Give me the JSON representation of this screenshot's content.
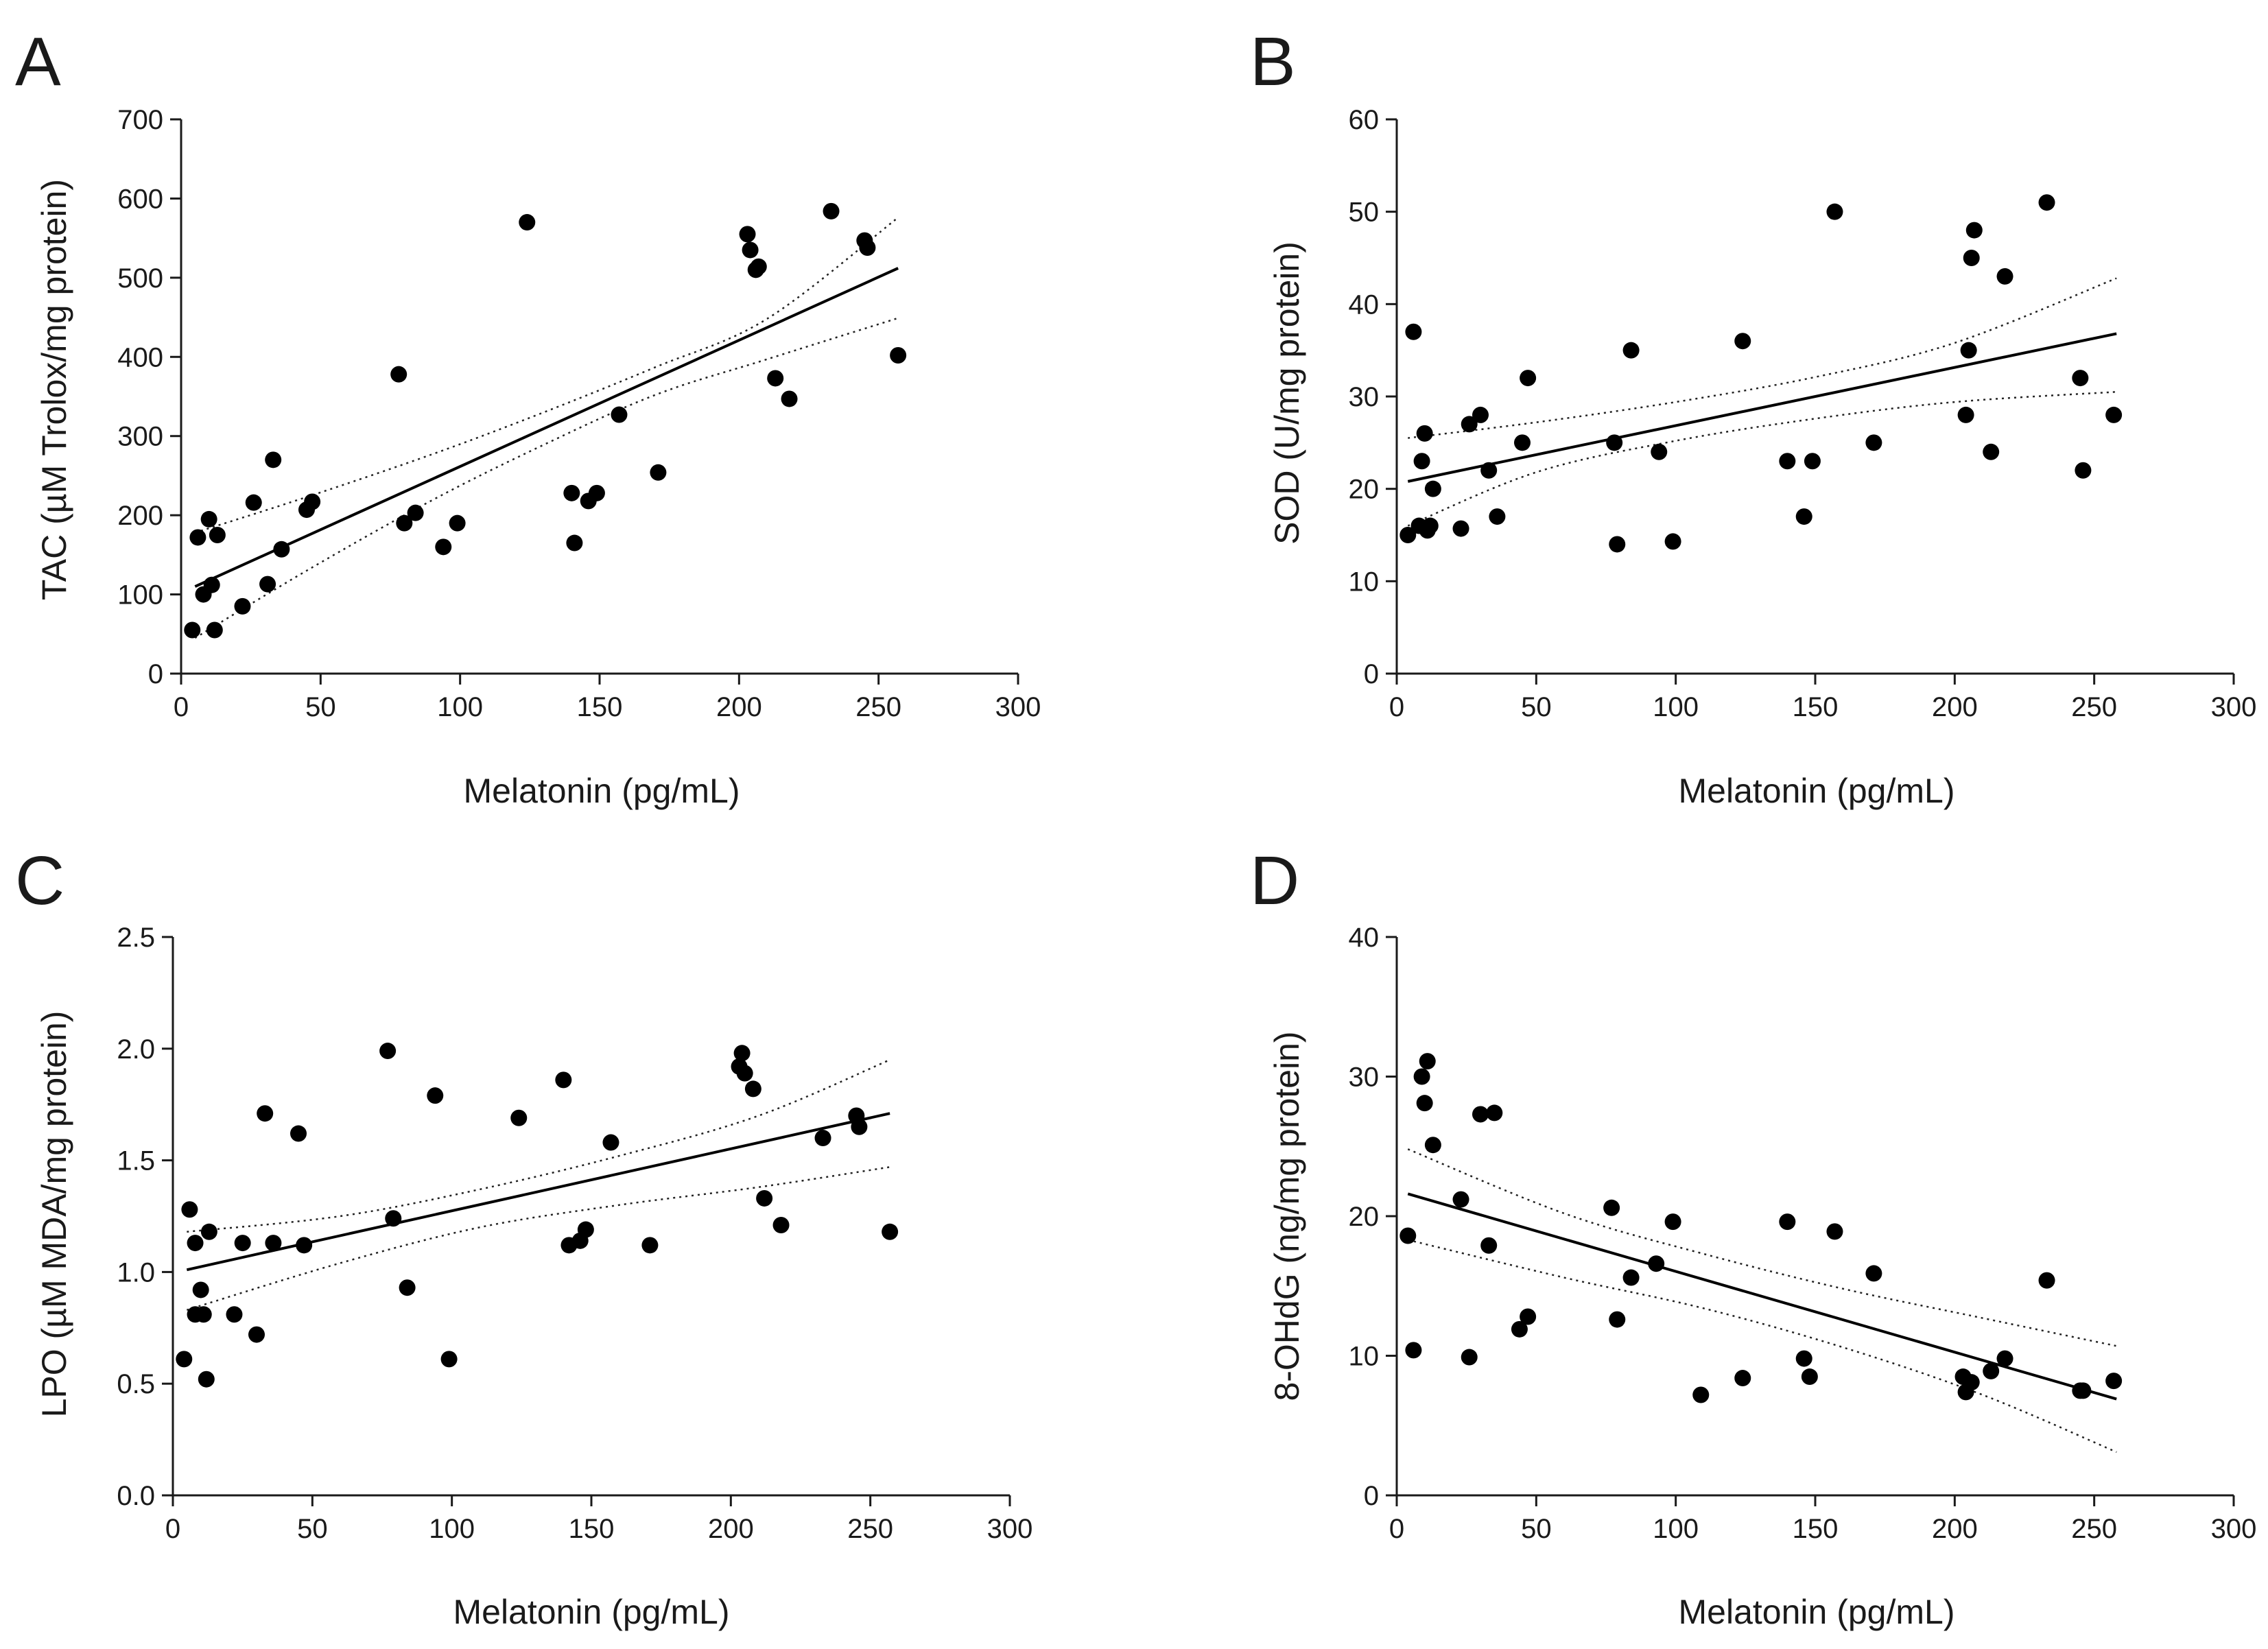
{
  "chart_data": [
    {
      "panel": "A",
      "type": "scatter",
      "xlabel": "Melatonin (pg/mL)",
      "ylabel": "TAC (µM Trolox/mg protein)",
      "xlim": [
        0,
        300
      ],
      "ylim": [
        0,
        700
      ],
      "xticks": [
        0,
        50,
        100,
        150,
        200,
        250,
        300
      ],
      "xtick_labels": [
        "0",
        "50",
        "100",
        "150",
        "200",
        "250",
        "300"
      ],
      "yticks": [
        0,
        100,
        200,
        300,
        400,
        500,
        600,
        700
      ],
      "ytick_labels": [
        "0",
        "100",
        "200",
        "300",
        "400",
        "500",
        "600",
        "700"
      ],
      "points": [
        [
          4,
          55
        ],
        [
          6,
          172
        ],
        [
          8,
          100
        ],
        [
          10,
          195
        ],
        [
          11,
          112
        ],
        [
          12,
          55
        ],
        [
          13,
          175
        ],
        [
          22,
          85
        ],
        [
          26,
          216
        ],
        [
          31,
          113
        ],
        [
          33,
          270
        ],
        [
          36,
          157
        ],
        [
          45,
          207
        ],
        [
          47,
          217
        ],
        [
          78,
          378
        ],
        [
          80,
          190
        ],
        [
          84,
          203
        ],
        [
          94,
          160
        ],
        [
          99,
          190
        ],
        [
          124,
          570
        ],
        [
          140,
          228
        ],
        [
          141,
          165
        ],
        [
          146,
          218
        ],
        [
          149,
          228
        ],
        [
          157,
          327
        ],
        [
          171,
          254
        ],
        [
          203,
          555
        ],
        [
          204,
          535
        ],
        [
          206,
          510
        ],
        [
          207,
          514
        ],
        [
          213,
          373
        ],
        [
          218,
          347
        ],
        [
          233,
          584
        ],
        [
          245,
          547
        ],
        [
          246,
          538
        ],
        [
          257,
          402
        ]
      ],
      "fit": {
        "x": [
          5,
          257
        ],
        "y": [
          110,
          512
        ]
      },
      "ci_upper": [
        [
          5,
          178
        ],
        [
          45,
          223
        ],
        [
          90,
          277
        ],
        [
          130,
          330
        ],
        [
          170,
          387
        ],
        [
          210,
          448
        ],
        [
          257,
          576
        ]
      ],
      "ci_lower": [
        [
          5,
          45
        ],
        [
          45,
          130
        ],
        [
          90,
          219
        ],
        [
          130,
          289
        ],
        [
          170,
          352
        ],
        [
          210,
          397
        ],
        [
          257,
          449
        ]
      ]
    },
    {
      "panel": "B",
      "type": "scatter",
      "xlabel": "Melatonin (pg/mL)",
      "ylabel": "SOD (U/mg protein)",
      "xlim": [
        0,
        300
      ],
      "ylim": [
        0,
        60
      ],
      "xticks": [
        0,
        50,
        100,
        150,
        200,
        250,
        300
      ],
      "xtick_labels": [
        "0",
        "50",
        "100",
        "150",
        "200",
        "250",
        "300"
      ],
      "yticks": [
        0,
        10,
        20,
        30,
        40,
        50,
        60
      ],
      "ytick_labels": [
        "0",
        "10",
        "20",
        "30",
        "40",
        "50",
        "60"
      ],
      "points": [
        [
          4,
          15
        ],
        [
          6,
          37
        ],
        [
          8,
          16
        ],
        [
          9,
          23
        ],
        [
          10,
          26
        ],
        [
          11,
          15.5
        ],
        [
          12,
          16
        ],
        [
          13,
          20
        ],
        [
          23,
          15.7
        ],
        [
          26,
          27
        ],
        [
          30,
          28
        ],
        [
          33,
          22
        ],
        [
          36,
          17
        ],
        [
          45,
          25
        ],
        [
          47,
          32
        ],
        [
          78,
          25
        ],
        [
          79,
          14
        ],
        [
          84,
          35
        ],
        [
          94,
          24
        ],
        [
          99,
          14.3
        ],
        [
          124,
          36
        ],
        [
          140,
          23
        ],
        [
          146,
          17
        ],
        [
          149,
          23
        ],
        [
          157,
          50
        ],
        [
          171,
          25
        ],
        [
          204,
          28
        ],
        [
          205,
          35
        ],
        [
          206,
          45
        ],
        [
          207,
          48
        ],
        [
          213,
          24
        ],
        [
          218,
          43
        ],
        [
          233,
          51
        ],
        [
          245,
          32
        ],
        [
          246,
          22
        ],
        [
          257,
          28
        ]
      ],
      "fit": {
        "x": [
          4,
          258
        ],
        "y": [
          20.8,
          36.8
        ]
      },
      "ci_upper": [
        [
          4,
          25.5
        ],
        [
          50,
          27.2
        ],
        [
          100,
          29.4
        ],
        [
          150,
          32.1
        ],
        [
          200,
          35.8
        ],
        [
          258,
          42.8
        ]
      ],
      "ci_lower": [
        [
          4,
          16
        ],
        [
          50,
          21.8
        ],
        [
          100,
          25.2
        ],
        [
          150,
          27.6
        ],
        [
          200,
          29.4
        ],
        [
          258,
          30.5
        ]
      ]
    },
    {
      "panel": "C",
      "type": "scatter",
      "xlabel": "Melatonin (pg/mL)",
      "ylabel": "LPO (µM MDA/mg protein)",
      "xlim": [
        0,
        300
      ],
      "ylim": [
        0.0,
        2.5
      ],
      "xticks": [
        0,
        50,
        100,
        150,
        200,
        250,
        300
      ],
      "xtick_labels": [
        "0",
        "50",
        "100",
        "150",
        "200",
        "250",
        "300"
      ],
      "yticks": [
        0.0,
        0.5,
        1.0,
        1.5,
        2.0,
        2.5
      ],
      "ytick_labels": [
        "0.0",
        "0.5",
        "1.0",
        "1.5",
        "2.0",
        "2.5"
      ],
      "points": [
        [
          4,
          0.61
        ],
        [
          6,
          1.28
        ],
        [
          8,
          0.81
        ],
        [
          8,
          1.13
        ],
        [
          10,
          0.92
        ],
        [
          11,
          0.81
        ],
        [
          12,
          0.52
        ],
        [
          13,
          1.18
        ],
        [
          22,
          0.81
        ],
        [
          25,
          1.13
        ],
        [
          30,
          0.72
        ],
        [
          33,
          1.71
        ],
        [
          36,
          1.13
        ],
        [
          45,
          1.62
        ],
        [
          47,
          1.12
        ],
        [
          77,
          1.99
        ],
        [
          79,
          1.24
        ],
        [
          84,
          0.93
        ],
        [
          94,
          1.79
        ],
        [
          99,
          0.61
        ],
        [
          124,
          1.69
        ],
        [
          140,
          1.86
        ],
        [
          142,
          1.12
        ],
        [
          146,
          1.14
        ],
        [
          148,
          1.19
        ],
        [
          157,
          1.58
        ],
        [
          171,
          1.12
        ],
        [
          203,
          1.92
        ],
        [
          204,
          1.98
        ],
        [
          205,
          1.89
        ],
        [
          208,
          1.82
        ],
        [
          212,
          1.33
        ],
        [
          218,
          1.21
        ],
        [
          233,
          1.6
        ],
        [
          245,
          1.7
        ],
        [
          246,
          1.65
        ],
        [
          257,
          1.18
        ]
      ],
      "fit": {
        "x": [
          5,
          257
        ],
        "y": [
          1.01,
          1.71
        ]
      },
      "ci_upper": [
        [
          5,
          1.18
        ],
        [
          60,
          1.25
        ],
        [
          110,
          1.37
        ],
        [
          160,
          1.52
        ],
        [
          210,
          1.7
        ],
        [
          257,
          1.95
        ]
      ],
      "ci_lower": [
        [
          5,
          0.83
        ],
        [
          60,
          1.04
        ],
        [
          110,
          1.2
        ],
        [
          160,
          1.3
        ],
        [
          210,
          1.38
        ],
        [
          257,
          1.47
        ]
      ]
    },
    {
      "panel": "D",
      "type": "scatter",
      "xlabel": "Melatonin (pg/mL)",
      "ylabel": "8-OHdG (ng/mg protein)",
      "xlim": [
        0,
        300
      ],
      "ylim": [
        0,
        40
      ],
      "xticks": [
        0,
        50,
        100,
        150,
        200,
        250,
        300
      ],
      "xtick_labels": [
        "0",
        "50",
        "100",
        "150",
        "200",
        "250",
        "300"
      ],
      "yticks": [
        0,
        10,
        20,
        30,
        40
      ],
      "ytick_labels": [
        "0",
        "10",
        "20",
        "30",
        "40"
      ],
      "points": [
        [
          4,
          18.6
        ],
        [
          6,
          10.4
        ],
        [
          9,
          30
        ],
        [
          10,
          28.1
        ],
        [
          11,
          31.1
        ],
        [
          13,
          25.1
        ],
        [
          23,
          21.2
        ],
        [
          26,
          9.9
        ],
        [
          30,
          27.3
        ],
        [
          33,
          17.9
        ],
        [
          35,
          27.4
        ],
        [
          44,
          11.9
        ],
        [
          47,
          12.8
        ],
        [
          77,
          20.6
        ],
        [
          79,
          12.6
        ],
        [
          84,
          15.6
        ],
        [
          93,
          16.6
        ],
        [
          99,
          19.6
        ],
        [
          109,
          7.2
        ],
        [
          124,
          8.4
        ],
        [
          140,
          19.6
        ],
        [
          146,
          9.8
        ],
        [
          148,
          8.5
        ],
        [
          157,
          18.9
        ],
        [
          171,
          15.9
        ],
        [
          203,
          8.5
        ],
        [
          204,
          7.4
        ],
        [
          206,
          8.1
        ],
        [
          213,
          8.9
        ],
        [
          218,
          9.8
        ],
        [
          233,
          15.4
        ],
        [
          245,
          7.5
        ],
        [
          246,
          7.5
        ],
        [
          257,
          8.2
        ]
      ],
      "fit": {
        "x": [
          4,
          258
        ],
        "y": [
          21.6,
          6.9
        ]
      },
      "ci_upper": [
        [
          4,
          24.8
        ],
        [
          60,
          20.2
        ],
        [
          110,
          17.3
        ],
        [
          160,
          14.8
        ],
        [
          210,
          12.7
        ],
        [
          258,
          10.7
        ]
      ],
      "ci_lower": [
        [
          4,
          18.3
        ],
        [
          60,
          15.6
        ],
        [
          110,
          13.4
        ],
        [
          160,
          10.6
        ],
        [
          210,
          7.2
        ],
        [
          258,
          3.1
        ]
      ]
    }
  ]
}
